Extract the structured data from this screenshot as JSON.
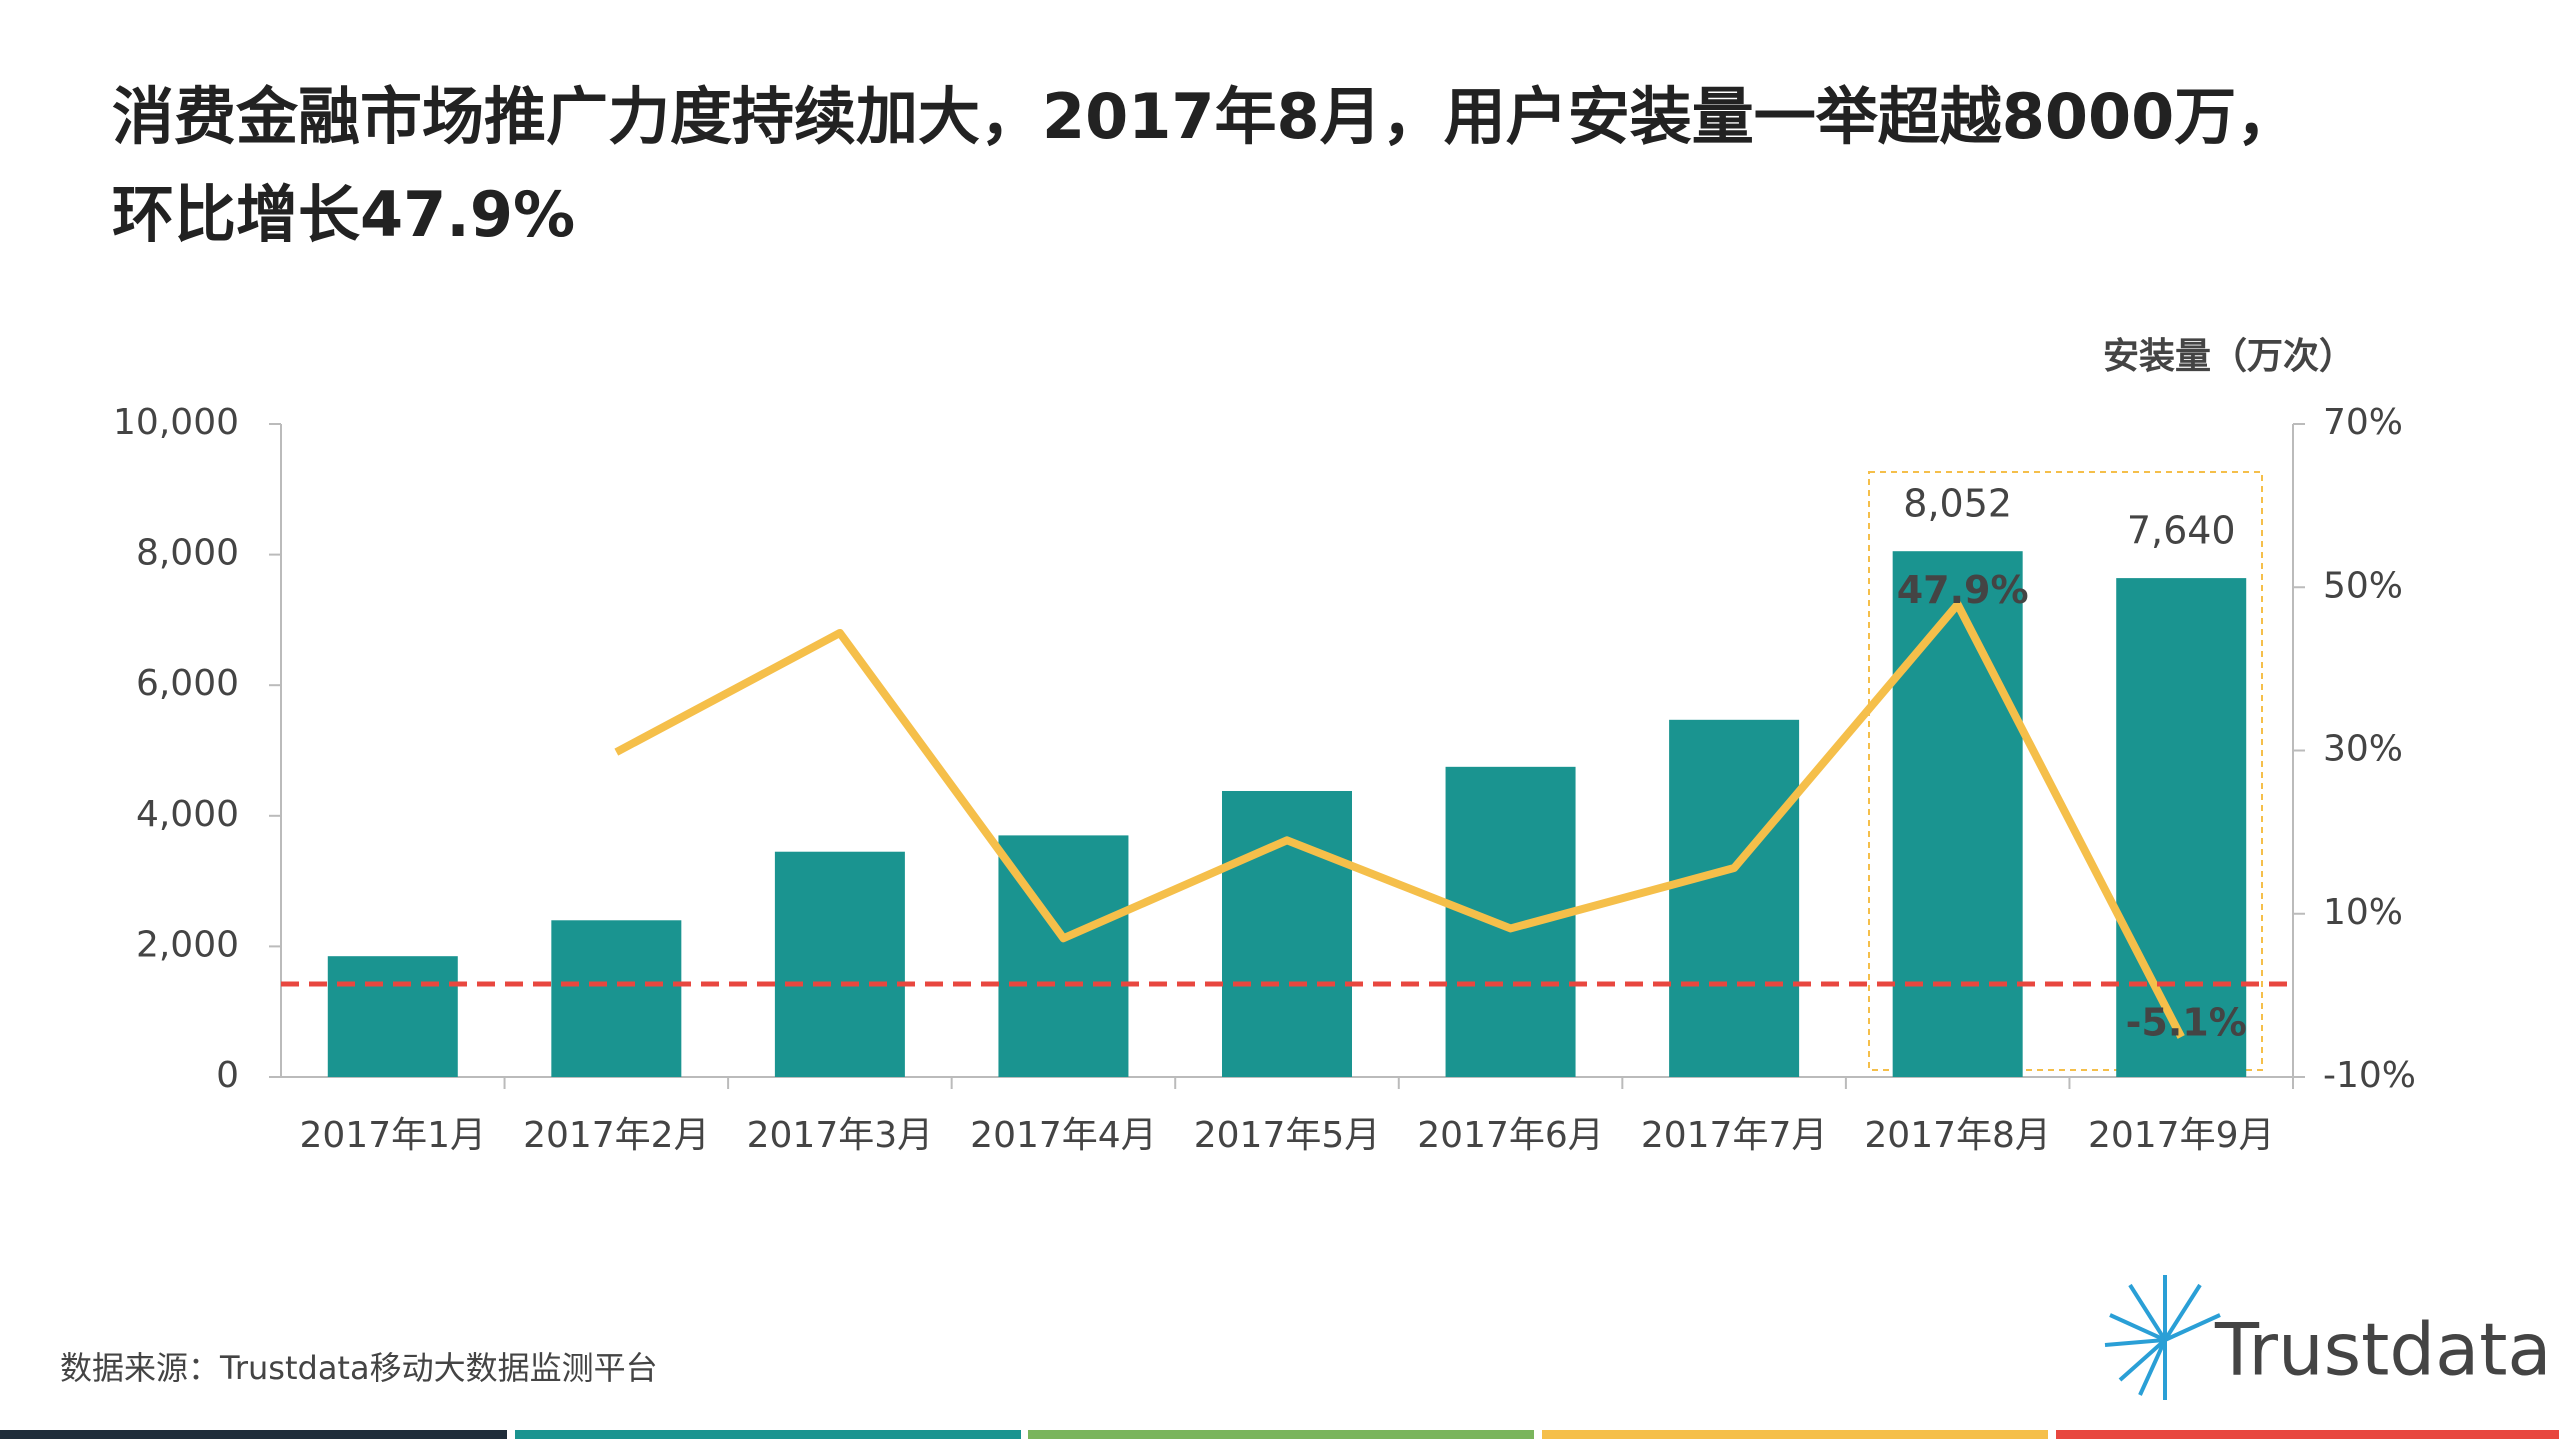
{
  "title": "消费金融市场推广力度持续加大，2017年8月，用户安装量一举超越8000万，环比增长47.9%",
  "chart_data": {
    "type": "bar-line",
    "y2_axis_label": "安装量（万次）",
    "categories": [
      "2017年1月",
      "2017年2月",
      "2017年3月",
      "2017年4月",
      "2017年5月",
      "2017年6月",
      "2017年7月",
      "2017年8月",
      "2017年9月"
    ],
    "series": [
      {
        "type": "bar",
        "color": "#1a9490",
        "values": [
          1850,
          2400,
          3450,
          3700,
          4380,
          4750,
          5470,
          8052,
          7640
        ],
        "value_labels": [
          null,
          null,
          null,
          null,
          null,
          null,
          null,
          "8,052",
          "7,640"
        ]
      },
      {
        "type": "line",
        "axis": "y2",
        "color": "#f5bf4a",
        "values": [
          null,
          29.8,
          44.4,
          7,
          19,
          8.2,
          15.6,
          47.9,
          -5.1
        ],
        "value_labels": [
          null,
          null,
          null,
          null,
          null,
          null,
          null,
          "47.9%",
          "-5.1%"
        ]
      }
    ],
    "reference_line": 1425,
    "reference_color": "#e8473f",
    "ylim": [
      0,
      10000
    ],
    "yticks": [
      0,
      {
        "value": 2000,
        "label": "2,000"
      },
      {
        "value": 4000,
        "label": "4,000"
      },
      {
        "value": 6000,
        "label": "6,000"
      },
      {
        "value": 8000,
        "label": "8,000"
      },
      {
        "value": 10000,
        "label": "10,000"
      }
    ],
    "y2lim": [
      -10,
      70
    ],
    "y2ticks": [
      {
        "value": -10,
        "label": "-10%"
      },
      {
        "value": 10,
        "label": "10%"
      },
      {
        "value": 30,
        "label": "30%"
      },
      {
        "value": 50,
        "label": "50%"
      },
      {
        "value": 70,
        "label": "70%"
      }
    ]
  },
  "footer": {
    "source": "数据来源：Trustdata移动大数据监测平台",
    "logo": "Trustdata"
  }
}
